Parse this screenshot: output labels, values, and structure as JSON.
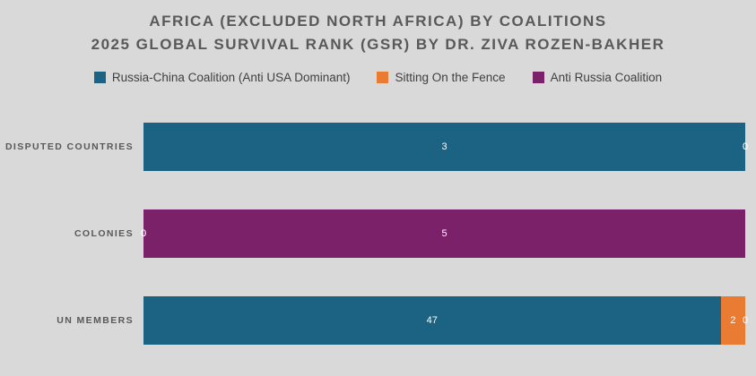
{
  "colors": {
    "background": "#d9d9d9",
    "title_text": "#595959",
    "legend_text": "#404040",
    "category_text": "#595959",
    "value_label_text": "#ffffff"
  },
  "chart_data": {
    "type": "bar",
    "orientation": "horizontal",
    "stacking": "100%",
    "title": "AFRICA (EXCLUDED NORTH AFRICA) BY COALITIONS",
    "subtitle": "2025 GLOBAL SURVIVAL RANK (GSR) BY DR. ZIVA ROZEN-BAKHER",
    "legend_position": "top",
    "grid": false,
    "data_labels": true,
    "categories": [
      "DISPUTED COUNTRIES",
      "COLONIES",
      "UN MEMBERS"
    ],
    "series": [
      {
        "name": "Russia-China Coalition (Anti USA Dominant)",
        "color": "#1b6283",
        "values": [
          3,
          0,
          47
        ]
      },
      {
        "name": "Sitting On the Fence",
        "color": "#e97c32",
        "values": [
          0,
          0,
          2
        ]
      },
      {
        "name": "Anti Russia Coalition",
        "color": "#7a2169",
        "values": [
          0,
          5,
          0
        ]
      }
    ]
  }
}
